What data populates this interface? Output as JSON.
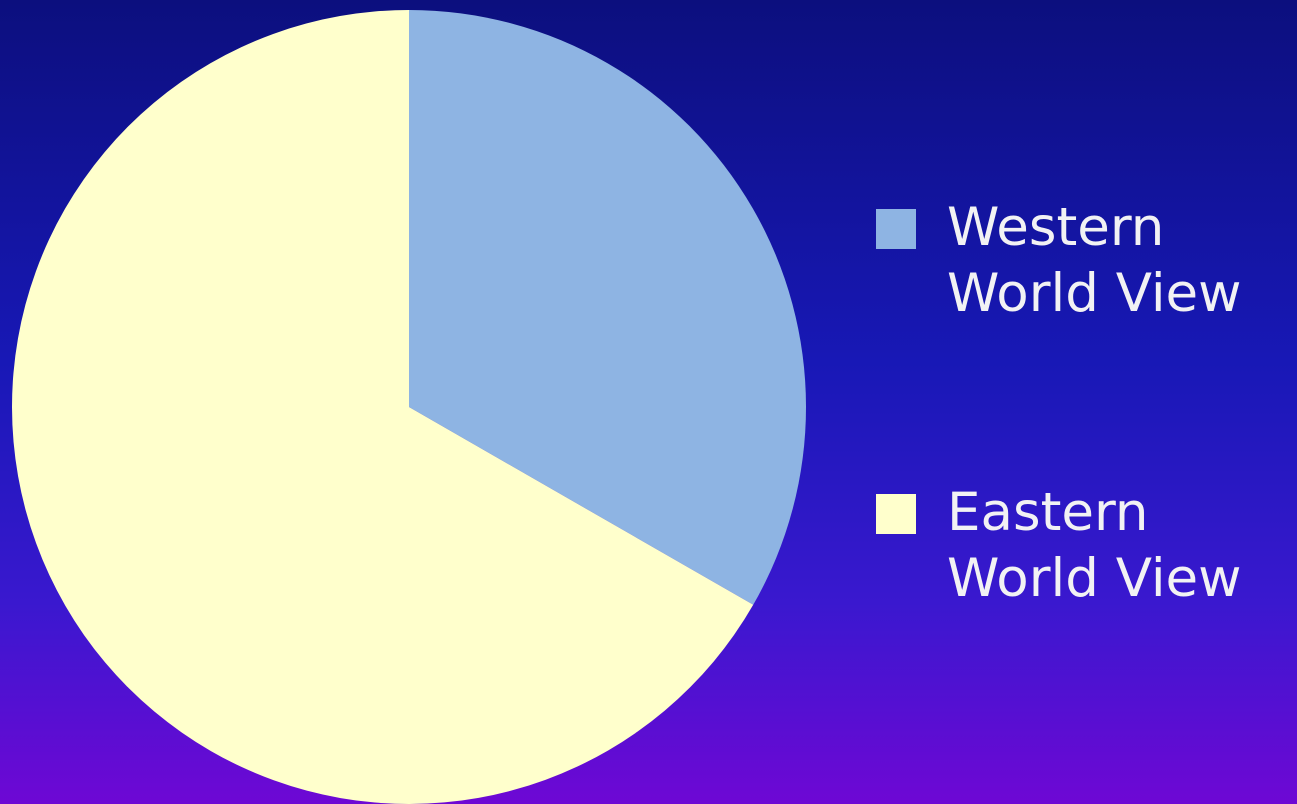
{
  "chart_data": {
    "type": "pie",
    "title": "",
    "series": [
      {
        "name": "Western World View",
        "value": 33.3,
        "color": "#8eb4e3"
      },
      {
        "name": "Eastern World View",
        "value": 66.7,
        "color": "#ffffcc"
      }
    ],
    "legend": {
      "position": "right",
      "items": [
        {
          "label": "Western\nWorld View",
          "color": "#8eb4e3"
        },
        {
          "label": "Eastern\nWorld View",
          "color": "#ffffcc"
        }
      ]
    }
  }
}
